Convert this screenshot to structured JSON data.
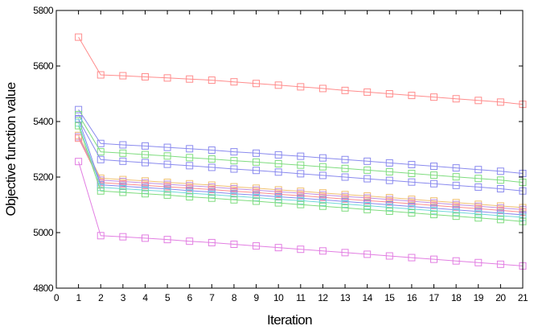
{
  "chart_data": {
    "type": "line",
    "title": "",
    "xlabel": "Iteration",
    "ylabel": "Objective function value",
    "xlim": [
      0,
      21
    ],
    "ylim": [
      4800,
      5800
    ],
    "x_ticks": [
      0,
      1,
      2,
      3,
      4,
      5,
      6,
      7,
      8,
      9,
      10,
      11,
      12,
      13,
      14,
      15,
      16,
      17,
      18,
      19,
      20,
      21
    ],
    "y_ticks": [
      4800,
      5000,
      5200,
      5400,
      5600,
      5800
    ],
    "grid": false,
    "legend": "none",
    "marker": "square",
    "x": [
      1,
      2,
      3,
      4,
      5,
      6,
      7,
      8,
      9,
      10,
      11,
      12,
      13,
      14,
      15,
      16,
      17,
      18,
      19,
      20,
      21
    ],
    "series": [
      {
        "color": "#ff8c8c",
        "values": [
          5704,
          5568,
          5565,
          5561,
          5557,
          5553,
          5549,
          5543,
          5537,
          5531,
          5525,
          5519,
          5512,
          5506,
          5500,
          5494,
          5488,
          5482,
          5476,
          5470,
          5462
        ]
      },
      {
        "color": "#8a8aee",
        "values": [
          5443,
          5321,
          5316,
          5312,
          5307,
          5302,
          5297,
          5291,
          5286,
          5280,
          5275,
          5269,
          5263,
          5257,
          5251,
          5245,
          5239,
          5233,
          5227,
          5221,
          5213
        ]
      },
      {
        "color": "#7fdc7f",
        "values": [
          5425,
          5291,
          5286,
          5281,
          5276,
          5270,
          5265,
          5259,
          5254,
          5248,
          5243,
          5237,
          5231,
          5225,
          5219,
          5213,
          5207,
          5201,
          5195,
          5189,
          5181
        ]
      },
      {
        "color": "#8a8aee",
        "values": [
          5408,
          5263,
          5257,
          5252,
          5246,
          5241,
          5235,
          5229,
          5224,
          5218,
          5212,
          5206,
          5200,
          5194,
          5188,
          5182,
          5176,
          5170,
          5164,
          5158,
          5150
        ]
      },
      {
        "color": "#f0c070",
        "values": [
          5350,
          5196,
          5191,
          5186,
          5181,
          5176,
          5171,
          5165,
          5160,
          5154,
          5149,
          5143,
          5137,
          5132,
          5126,
          5120,
          5114,
          5108,
          5102,
          5096,
          5090
        ]
      },
      {
        "color": "#c090e0",
        "values": [
          5345,
          5189,
          5184,
          5179,
          5174,
          5169,
          5164,
          5158,
          5153,
          5147,
          5142,
          5136,
          5130,
          5125,
          5119,
          5113,
          5107,
          5101,
          5095,
          5089,
          5083
        ]
      },
      {
        "color": "#ff8c8c",
        "values": [
          5340,
          5180,
          5175,
          5170,
          5165,
          5160,
          5155,
          5149,
          5144,
          5138,
          5133,
          5127,
          5121,
          5115,
          5110,
          5104,
          5098,
          5092,
          5086,
          5080,
          5074
        ]
      },
      {
        "color": "#8a8aee",
        "values": [
          5410,
          5172,
          5167,
          5162,
          5157,
          5151,
          5146,
          5140,
          5135,
          5129,
          5124,
          5118,
          5112,
          5106,
          5100,
          5094,
          5088,
          5082,
          5076,
          5070,
          5064
        ]
      },
      {
        "color": "#70d8d8",
        "values": [
          5395,
          5163,
          5158,
          5153,
          5148,
          5142,
          5137,
          5131,
          5126,
          5120,
          5115,
          5109,
          5103,
          5097,
          5091,
          5085,
          5079,
          5073,
          5067,
          5061,
          5055
        ]
      },
      {
        "color": "#7fdc7f",
        "values": [
          5385,
          5150,
          5145,
          5140,
          5135,
          5129,
          5124,
          5118,
          5113,
          5107,
          5101,
          5095,
          5089,
          5083,
          5077,
          5071,
          5065,
          5059,
          5053,
          5047,
          5040
        ]
      },
      {
        "color": "#e27ee2",
        "values": [
          5256,
          4989,
          4985,
          4980,
          4975,
          4969,
          4964,
          4958,
          4952,
          4946,
          4940,
          4934,
          4928,
          4922,
          4916,
          4910,
          4904,
          4898,
          4892,
          4886,
          4880
        ]
      }
    ]
  }
}
